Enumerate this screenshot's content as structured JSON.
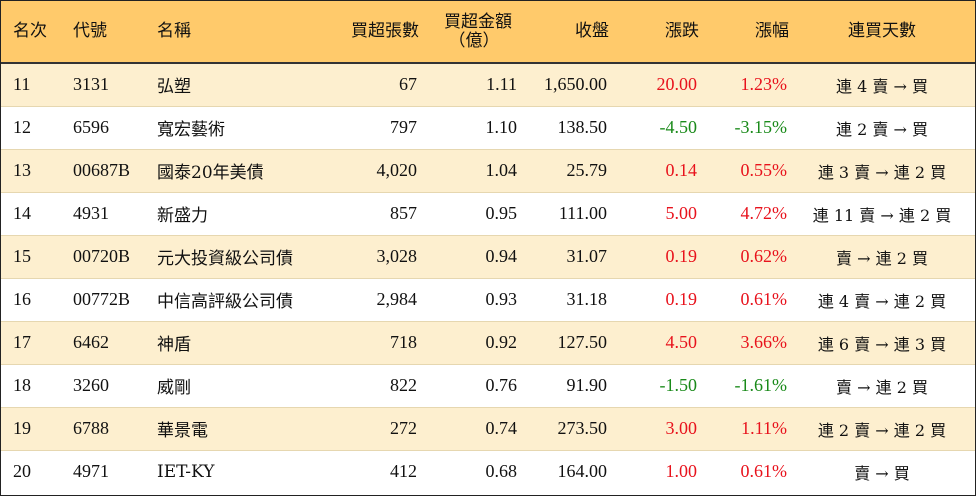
{
  "colors": {
    "header_bg": "#ffca6b",
    "odd_row_bg": "#fdefcf",
    "even_row_bg": "#ffffff",
    "up": "#e8121c",
    "down": "#1a8a1a"
  },
  "headers": {
    "rank": "名次",
    "code": "代號",
    "name": "名稱",
    "net_buy_volume": "買超張數",
    "net_buy_amount_line1": "買超金額",
    "net_buy_amount_line2": "（億）",
    "close": "收盤",
    "change": "漲跌",
    "change_pct": "漲幅",
    "streak": "連買天數"
  },
  "rows": [
    {
      "rank": "11",
      "code": "3131",
      "name": "弘塑",
      "volume": "67",
      "amount": "1.11",
      "close": "1,650.00",
      "change": "20.00",
      "pct": "1.23%",
      "dir": "up",
      "streak": "連 4 賣 → 買"
    },
    {
      "rank": "12",
      "code": "6596",
      "name": "寬宏藝術",
      "volume": "797",
      "amount": "1.10",
      "close": "138.50",
      "change": "-4.50",
      "pct": "-3.15%",
      "dir": "down",
      "streak": "連 2 賣 → 買"
    },
    {
      "rank": "13",
      "code": "00687B",
      "name": "國泰20年美債",
      "volume": "4,020",
      "amount": "1.04",
      "close": "25.79",
      "change": "0.14",
      "pct": "0.55%",
      "dir": "up",
      "streak": "連 3 賣 → 連 2 買"
    },
    {
      "rank": "14",
      "code": "4931",
      "name": "新盛力",
      "volume": "857",
      "amount": "0.95",
      "close": "111.00",
      "change": "5.00",
      "pct": "4.72%",
      "dir": "up",
      "streak": "連 11 賣 → 連 2 買"
    },
    {
      "rank": "15",
      "code": "00720B",
      "name": "元大投資級公司債",
      "volume": "3,028",
      "amount": "0.94",
      "close": "31.07",
      "change": "0.19",
      "pct": "0.62%",
      "dir": "up",
      "streak": "賣 → 連 2 買"
    },
    {
      "rank": "16",
      "code": "00772B",
      "name": "中信高評級公司債",
      "volume": "2,984",
      "amount": "0.93",
      "close": "31.18",
      "change": "0.19",
      "pct": "0.61%",
      "dir": "up",
      "streak": "連 4 賣 → 連 2 買"
    },
    {
      "rank": "17",
      "code": "6462",
      "name": "神盾",
      "volume": "718",
      "amount": "0.92",
      "close": "127.50",
      "change": "4.50",
      "pct": "3.66%",
      "dir": "up",
      "streak": "連 6 賣 → 連 3 買"
    },
    {
      "rank": "18",
      "code": "3260",
      "name": "威剛",
      "volume": "822",
      "amount": "0.76",
      "close": "91.90",
      "change": "-1.50",
      "pct": "-1.61%",
      "dir": "down",
      "streak": "賣 → 連 2 買"
    },
    {
      "rank": "19",
      "code": "6788",
      "name": "華景電",
      "volume": "272",
      "amount": "0.74",
      "close": "273.50",
      "change": "3.00",
      "pct": "1.11%",
      "dir": "up",
      "streak": "連 2 賣 → 連 2 買"
    },
    {
      "rank": "20",
      "code": "4971",
      "name": "IET-KY",
      "volume": "412",
      "amount": "0.68",
      "close": "164.00",
      "change": "1.00",
      "pct": "0.61%",
      "dir": "up",
      "streak": "賣 → 買"
    }
  ]
}
